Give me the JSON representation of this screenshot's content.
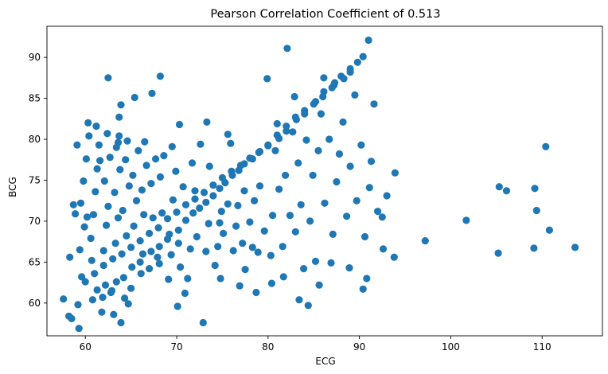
{
  "chart_data": {
    "type": "scatter",
    "title": "Pearson Correlation Coefficient of 0.513",
    "xlabel": "ECG",
    "ylabel": "BCG",
    "xlim": [
      55.8,
      116.6
    ],
    "ylim": [
      56.0,
      93.8
    ],
    "xticks": [
      60,
      70,
      80,
      90,
      100,
      110
    ],
    "yticks": [
      60,
      65,
      70,
      75,
      80,
      85,
      90
    ],
    "grid": false,
    "legend": "none",
    "marker_color": "#1f77b4",
    "series": [
      {
        "points": [
          [
            60.8,
            60.4
          ],
          [
            61.3,
            61.6
          ],
          [
            61.9,
            60.7
          ],
          [
            62.2,
            62.2
          ],
          [
            62.9,
            61.5
          ],
          [
            63.4,
            62.6
          ],
          [
            64.2,
            63.1
          ],
          [
            65.1,
            64.4
          ],
          [
            66.0,
            65.0
          ],
          [
            67.2,
            66.3
          ],
          [
            68.1,
            66.9
          ],
          [
            69.0,
            67.8
          ],
          [
            70.2,
            68.9
          ],
          [
            71.0,
            70.1
          ],
          [
            71.8,
            71.0
          ],
          [
            72.5,
            71.6
          ],
          [
            73.2,
            72.3
          ],
          [
            74.0,
            73.1
          ],
          [
            74.7,
            74.0
          ],
          [
            75.3,
            74.7
          ],
          [
            76.1,
            75.6
          ],
          [
            76.8,
            76.2
          ],
          [
            77.4,
            77.0
          ],
          [
            78.3,
            77.6
          ],
          [
            79.1,
            78.5
          ],
          [
            80.0,
            79.2
          ],
          [
            81.2,
            80.1
          ],
          [
            82.0,
            81.0
          ],
          [
            83.1,
            82.4
          ],
          [
            84.0,
            83.1
          ],
          [
            85.2,
            84.6
          ],
          [
            86.1,
            85.8
          ],
          [
            87.2,
            86.6
          ],
          [
            88.3,
            87.4
          ],
          [
            89.0,
            88.6
          ],
          [
            89.8,
            89.4
          ],
          [
            90.4,
            90.1
          ],
          [
            91.0,
            92.1
          ],
          [
            60.0,
            62.6
          ],
          [
            61.0,
            63.6
          ],
          [
            62.0,
            64.6
          ],
          [
            63.0,
            65.4
          ],
          [
            64.0,
            66.0
          ],
          [
            65.0,
            66.8
          ],
          [
            66.0,
            67.6
          ],
          [
            67.0,
            68.5
          ],
          [
            68.0,
            69.2
          ],
          [
            69.0,
            70.3
          ],
          [
            70.0,
            71.1
          ],
          [
            71.0,
            72.0
          ],
          [
            72.0,
            72.7
          ],
          [
            73.0,
            73.5
          ],
          [
            74.0,
            74.4
          ],
          [
            75.0,
            75.3
          ],
          [
            76.0,
            76.1
          ],
          [
            77.0,
            76.8
          ],
          [
            78.0,
            77.7
          ],
          [
            79.0,
            78.4
          ],
          [
            80.0,
            79.3
          ],
          [
            81.0,
            80.5
          ],
          [
            82.0,
            81.6
          ],
          [
            83.0,
            82.7
          ],
          [
            84.0,
            83.5
          ],
          [
            85.0,
            84.3
          ],
          [
            86.0,
            85.2
          ],
          [
            87.0,
            86.3
          ],
          [
            88.0,
            87.7
          ],
          [
            89.0,
            88.2
          ],
          [
            59.2,
            59.8
          ],
          [
            59.6,
            63.2
          ],
          [
            59.4,
            66.5
          ],
          [
            59.9,
            69.3
          ],
          [
            59.5,
            72.2
          ],
          [
            59.8,
            74.9
          ],
          [
            60.1,
            77.6
          ],
          [
            60.4,
            80.4
          ],
          [
            60.3,
            82.0
          ],
          [
            60.7,
            65.2
          ],
          [
            60.6,
            67.9
          ],
          [
            60.9,
            70.8
          ],
          [
            61.1,
            73.6
          ],
          [
            61.3,
            76.4
          ],
          [
            61.5,
            79.3
          ],
          [
            61.2,
            81.6
          ],
          [
            61.8,
            58.9
          ],
          [
            62.0,
            66.4
          ],
          [
            62.3,
            69.5
          ],
          [
            62.5,
            71.8
          ],
          [
            62.1,
            74.9
          ],
          [
            62.7,
            77.8
          ],
          [
            62.4,
            80.7
          ],
          [
            62.5,
            87.5
          ],
          [
            63.1,
            58.6
          ],
          [
            63.3,
            67.3
          ],
          [
            63.6,
            70.4
          ],
          [
            63.2,
            73.5
          ],
          [
            63.8,
            76.3
          ],
          [
            63.4,
            79.0
          ],
          [
            63.7,
            80.4
          ],
          [
            63.7,
            82.7
          ],
          [
            63.9,
            84.2
          ],
          [
            63.9,
            57.6
          ],
          [
            64.3,
            60.6
          ],
          [
            64.5,
            68.2
          ],
          [
            64.1,
            71.3
          ],
          [
            64.8,
            74.3
          ],
          [
            64.4,
            77.5
          ],
          [
            64.6,
            79.8
          ],
          [
            65.0,
            61.8
          ],
          [
            65.3,
            69.4
          ],
          [
            65.6,
            72.5
          ],
          [
            65.2,
            75.6
          ],
          [
            65.8,
            78.6
          ],
          [
            65.4,
            85.1
          ],
          [
            66.1,
            63.6
          ],
          [
            66.4,
            70.8
          ],
          [
            66.2,
            73.8
          ],
          [
            66.7,
            76.8
          ],
          [
            66.5,
            79.7
          ],
          [
            67.0,
            64.2
          ],
          [
            67.4,
            70.4
          ],
          [
            67.2,
            74.6
          ],
          [
            67.7,
            77.6
          ],
          [
            67.3,
            85.6
          ],
          [
            68.1,
            64.8
          ],
          [
            68.4,
            71.0
          ],
          [
            68.2,
            75.4
          ],
          [
            68.6,
            78.0
          ],
          [
            68.2,
            87.7
          ],
          [
            69.1,
            62.9
          ],
          [
            69.4,
            65.9
          ],
          [
            69.2,
            68.4
          ],
          [
            69.6,
            72.6
          ],
          [
            69.9,
            76.1
          ],
          [
            69.5,
            79.1
          ],
          [
            70.1,
            59.6
          ],
          [
            70.4,
            64.4
          ],
          [
            70.2,
            67.3
          ],
          [
            70.7,
            74.2
          ],
          [
            70.3,
            81.8
          ],
          [
            71.2,
            63.0
          ],
          [
            71.5,
            66.6
          ],
          [
            71.7,
            77.1
          ],
          [
            72.2,
            68.1
          ],
          [
            72.6,
            79.4
          ],
          [
            72.9,
            57.6
          ],
          [
            73.2,
            66.3
          ],
          [
            73.5,
            69.7
          ],
          [
            73.3,
            82.1
          ],
          [
            74.2,
            64.6
          ],
          [
            74.5,
            66.9
          ],
          [
            74.7,
            69.8
          ],
          [
            74.9,
            71.2
          ],
          [
            75.1,
            68.5
          ],
          [
            75.6,
            72.1
          ],
          [
            75.9,
            79.5
          ],
          [
            76.2,
            66.4
          ],
          [
            76.5,
            69.4
          ],
          [
            76.7,
            71.9
          ],
          [
            77.2,
            67.3
          ],
          [
            77.5,
            64.1
          ],
          [
            77.4,
            73.7
          ],
          [
            78.3,
            66.8
          ],
          [
            78.0,
            69.9
          ],
          [
            78.5,
            72.5
          ],
          [
            78.7,
            61.3
          ],
          [
            79.1,
            74.3
          ],
          [
            79.6,
            68.8
          ],
          [
            79.9,
            87.4
          ],
          [
            80.3,
            65.8
          ],
          [
            80.5,
            70.7
          ],
          [
            80.8,
            78.6
          ],
          [
            81.2,
            73.9
          ],
          [
            81.6,
            66.9
          ],
          [
            81.9,
            75.6
          ],
          [
            82.1,
            91.1
          ],
          [
            82.4,
            70.7
          ],
          [
            82.7,
            80.9
          ],
          [
            83.0,
            68.7
          ],
          [
            83.3,
            77.1
          ],
          [
            83.6,
            72.0
          ],
          [
            83.9,
            64.2
          ],
          [
            84.2,
            79.9
          ],
          [
            84.6,
            70.0
          ],
          [
            84.9,
            75.6
          ],
          [
            85.2,
            65.1
          ],
          [
            85.5,
            78.6
          ],
          [
            85.8,
            83.1
          ],
          [
            86.2,
            72.2
          ],
          [
            86.7,
            80.0
          ],
          [
            87.1,
            68.4
          ],
          [
            87.5,
            74.8
          ],
          [
            87.8,
            78.2
          ],
          [
            88.2,
            82.1
          ],
          [
            88.6,
            70.6
          ],
          [
            89.0,
            76.7
          ],
          [
            89.5,
            85.4
          ],
          [
            89.7,
            72.5
          ],
          [
            90.2,
            79.3
          ],
          [
            90.6,
            68.1
          ],
          [
            90.8,
            63.0
          ],
          [
            91.1,
            74.1
          ],
          [
            91.3,
            77.3
          ],
          [
            91.6,
            84.3
          ],
          [
            92.0,
            71.2
          ],
          [
            92.6,
            66.6
          ],
          [
            93.0,
            73.1
          ],
          [
            93.8,
            65.6
          ],
          [
            93.9,
            75.9
          ],
          [
            57.6,
            60.5
          ],
          [
            58.2,
            58.4
          ],
          [
            58.5,
            58.1
          ],
          [
            58.3,
            65.6
          ],
          [
            58.7,
            72.0
          ],
          [
            58.9,
            70.9
          ],
          [
            59.1,
            79.3
          ],
          [
            59.3,
            56.9
          ],
          [
            60.2,
            70.5
          ],
          [
            61.6,
            77.4
          ],
          [
            62.8,
            61.3
          ],
          [
            63.6,
            79.6
          ],
          [
            64.7,
            59.9
          ],
          [
            66.3,
            66.0
          ],
          [
            67.9,
            65.6
          ],
          [
            70.9,
            61.2
          ],
          [
            72.0,
            73.7
          ],
          [
            73.6,
            76.7
          ],
          [
            74.8,
            63.0
          ],
          [
            75.6,
            80.6
          ],
          [
            76.9,
            62.1
          ],
          [
            78.9,
            66.2
          ],
          [
            80.4,
            62.4
          ],
          [
            81.0,
            81.9
          ],
          [
            81.7,
            63.2
          ],
          [
            82.9,
            85.2
          ],
          [
            83.4,
            60.4
          ],
          [
            84.4,
            59.7
          ],
          [
            85.6,
            62.2
          ],
          [
            86.1,
            87.5
          ],
          [
            86.9,
            64.9
          ],
          [
            87.3,
            86.9
          ],
          [
            88.9,
            64.3
          ],
          [
            90.4,
            61.7
          ],
          [
            92.5,
            70.5
          ],
          [
            97.2,
            67.6
          ],
          [
            101.7,
            70.1
          ],
          [
            105.2,
            66.1
          ],
          [
            105.3,
            74.2
          ],
          [
            106.1,
            73.7
          ],
          [
            109.1,
            66.7
          ],
          [
            109.2,
            74.0
          ],
          [
            109.4,
            71.3
          ],
          [
            110.4,
            79.1
          ],
          [
            110.8,
            68.9
          ],
          [
            113.6,
            66.8
          ]
        ]
      }
    ]
  }
}
